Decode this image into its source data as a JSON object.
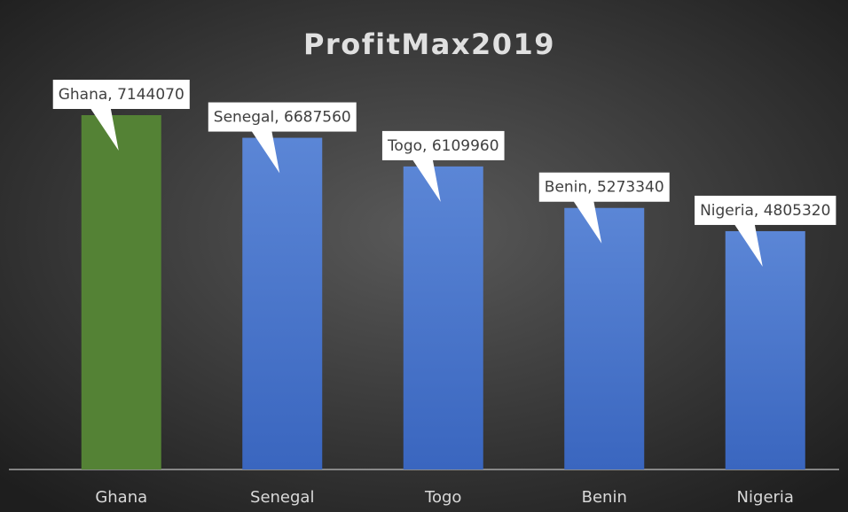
{
  "chart_data": {
    "type": "bar",
    "title": "ProfitMax2019",
    "categories": [
      "Ghana",
      "Senegal",
      "Togo",
      "Benin",
      "Nigeria"
    ],
    "values": [
      7144070,
      6687560,
      6109960,
      5273340,
      4805320
    ],
    "value_labels": [
      "Ghana, 7144070",
      "Senegal, 6687560",
      "Togo, 6109960",
      "Benin, 5273340",
      "Nigeria, 4805320"
    ],
    "colors": [
      "#548235",
      "#4472c4",
      "#4472c4",
      "#4472c4",
      "#4472c4"
    ]
  }
}
